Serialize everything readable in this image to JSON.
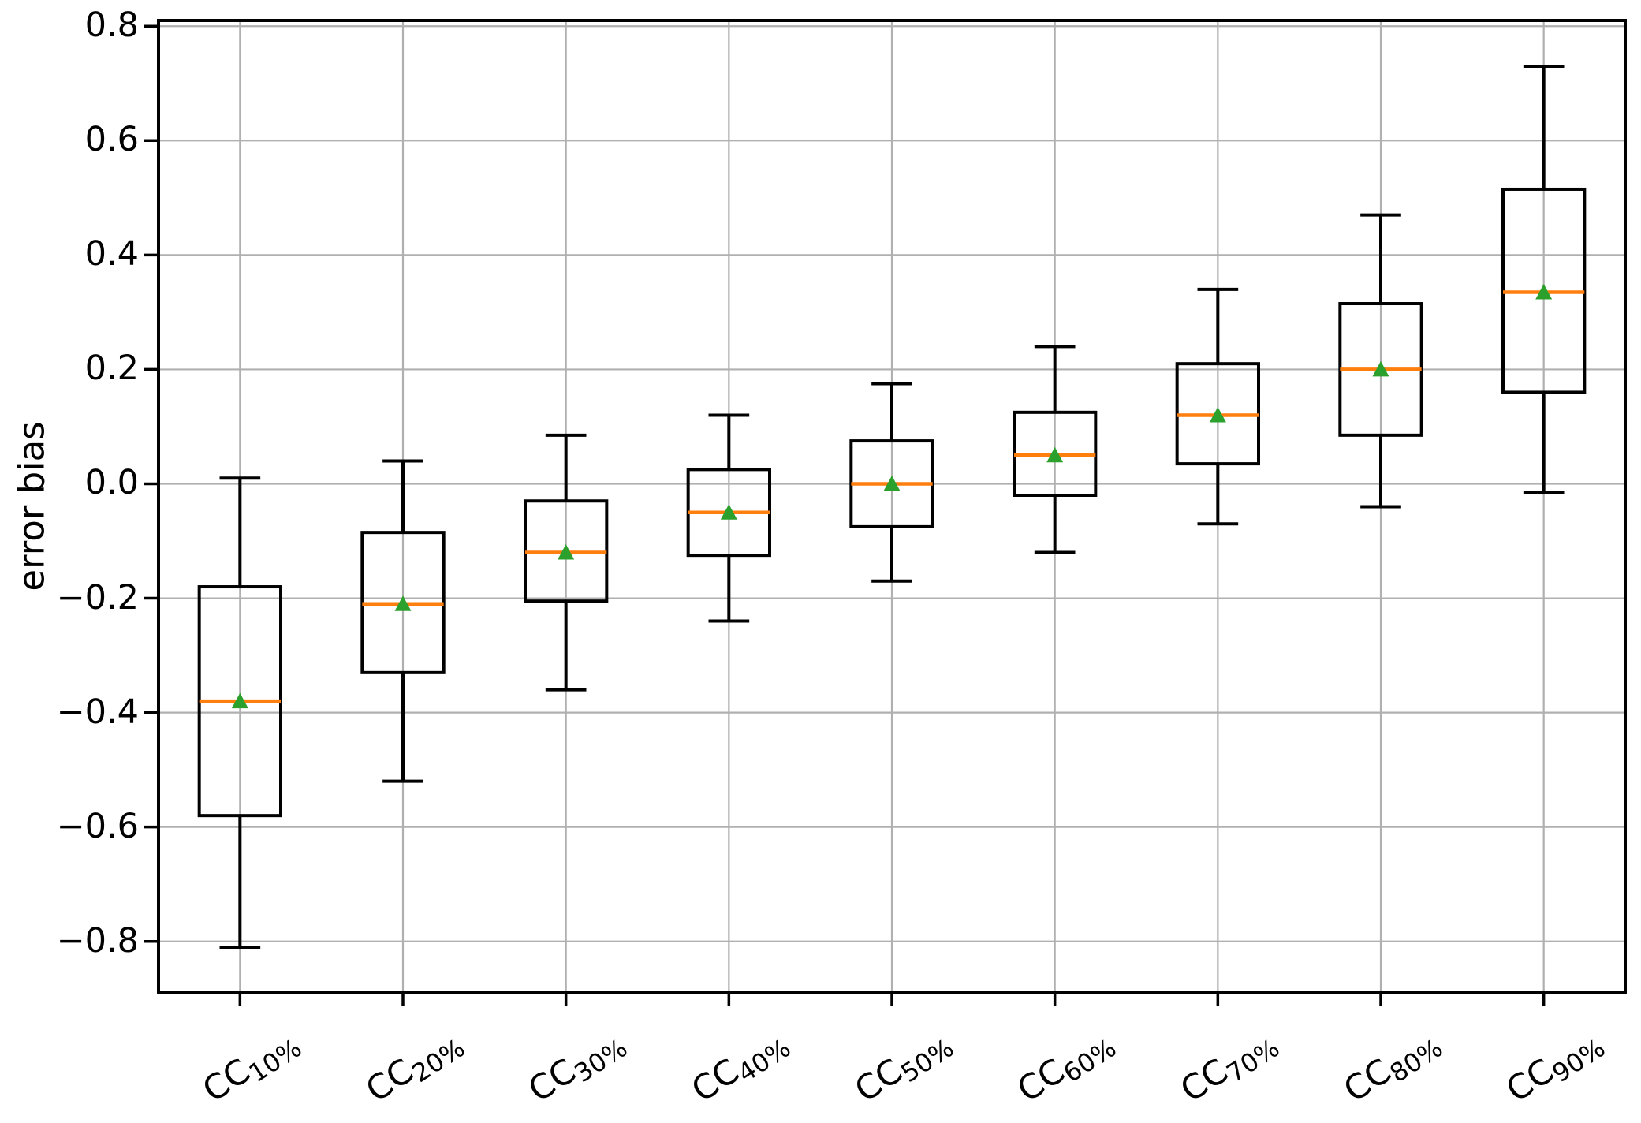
{
  "figure": {
    "background": "#ffffff"
  },
  "chart_data": {
    "type": "boxplot",
    "title": "",
    "xlabel": "",
    "ylabel": "error bias",
    "grid": true,
    "legend": "none",
    "categories": [
      "CC10%",
      "CC20%",
      "CC30%",
      "CC40%",
      "CC50%",
      "CC60%",
      "CC70%",
      "CC80%",
      "CC90%"
    ],
    "category_style": {
      "base": "CC",
      "subscript_suffix": true
    },
    "ytick_labels": [
      "0.8",
      "0.6",
      "0.4",
      "0.2",
      "0.0",
      "−0.2",
      "−0.4",
      "−0.6",
      "−0.8"
    ],
    "ylim": [
      -0.89,
      0.81
    ],
    "boxes": [
      {
        "label": "CC10%",
        "whislo": -0.81,
        "q1": -0.58,
        "med": -0.38,
        "q3": -0.18,
        "whishi": 0.01,
        "mean": -0.38
      },
      {
        "label": "CC20%",
        "whislo": -0.52,
        "q1": -0.33,
        "med": -0.21,
        "q3": -0.085,
        "whishi": 0.04,
        "mean": -0.21
      },
      {
        "label": "CC30%",
        "whislo": -0.36,
        "q1": -0.205,
        "med": -0.12,
        "q3": -0.03,
        "whishi": 0.085,
        "mean": -0.12
      },
      {
        "label": "CC40%",
        "whislo": -0.24,
        "q1": -0.125,
        "med": -0.05,
        "q3": 0.025,
        "whishi": 0.12,
        "mean": -0.05
      },
      {
        "label": "CC50%",
        "whislo": -0.17,
        "q1": -0.075,
        "med": 0.0,
        "q3": 0.075,
        "whishi": 0.175,
        "mean": 0.0
      },
      {
        "label": "CC60%",
        "whislo": -0.12,
        "q1": -0.02,
        "med": 0.05,
        "q3": 0.125,
        "whishi": 0.24,
        "mean": 0.05
      },
      {
        "label": "CC70%",
        "whislo": -0.07,
        "q1": 0.035,
        "med": 0.12,
        "q3": 0.21,
        "whishi": 0.34,
        "mean": 0.12
      },
      {
        "label": "CC80%",
        "whislo": -0.04,
        "q1": 0.085,
        "med": 0.2,
        "q3": 0.315,
        "whishi": 0.47,
        "mean": 0.2
      },
      {
        "label": "CC90%",
        "whislo": -0.015,
        "q1": 0.16,
        "med": 0.335,
        "q3": 0.515,
        "whishi": 0.73,
        "mean": 0.335
      }
    ],
    "colors": {
      "box_line": "#000000",
      "whisker": "#000000",
      "median": "#ff7f0e",
      "mean_marker": "#2ca02c",
      "grid": "#b0b0b0",
      "spine": "#000000",
      "text": "#000000"
    }
  }
}
